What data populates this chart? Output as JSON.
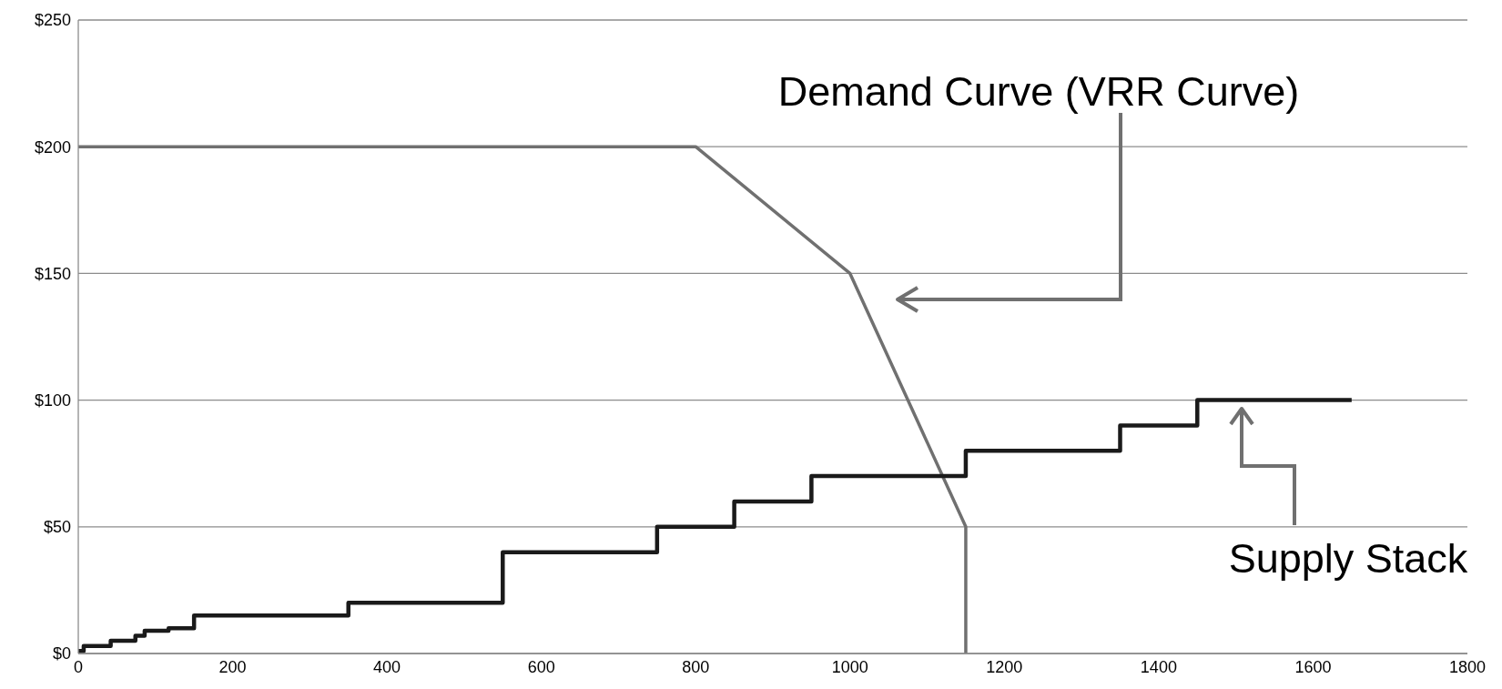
{
  "chart_data": {
    "type": "line",
    "xlim": [
      0,
      1800
    ],
    "xticks": [
      0,
      200,
      400,
      600,
      800,
      1000,
      1200,
      1400,
      1600,
      1800
    ],
    "ylim": [
      0,
      250
    ],
    "yticks": [
      {
        "value": 0,
        "label": "$0"
      },
      {
        "value": 50,
        "label": "$50"
      },
      {
        "value": 100,
        "label": "$100"
      },
      {
        "value": 150,
        "label": "$150"
      },
      {
        "value": 200,
        "label": "$200"
      },
      {
        "value": 250,
        "label": "$250"
      }
    ],
    "grid": "y",
    "legend": false,
    "marker": "none",
    "line_style": "solid",
    "series": [
      {
        "color": "#707070",
        "x": [
          0,
          800,
          1000,
          1150,
          1150
        ],
        "values": [
          200,
          200,
          150,
          50,
          0
        ]
      },
      {
        "type": "step",
        "color": "#1a1a1a",
        "x": [
          0,
          7,
          42,
          74,
          86,
          117,
          150,
          350,
          550,
          750,
          850,
          950,
          1150,
          1350,
          1450,
          1650
        ],
        "values": [
          1,
          3,
          5,
          7,
          9,
          10,
          15,
          20,
          40,
          50,
          60,
          70,
          80,
          90,
          100,
          100
        ]
      }
    ],
    "annotations": [
      "Demand Curve (VRR Curve)",
      "Supply Stack"
    ]
  }
}
